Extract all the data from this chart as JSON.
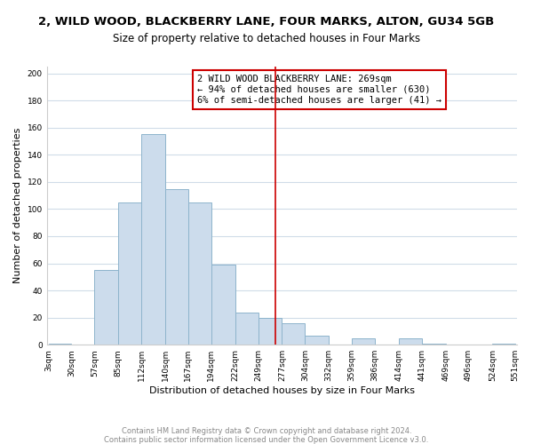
{
  "title": "2, WILD WOOD, BLACKBERRY LANE, FOUR MARKS, ALTON, GU34 5GB",
  "subtitle": "Size of property relative to detached houses in Four Marks",
  "xlabel": "Distribution of detached houses by size in Four Marks",
  "ylabel": "Number of detached properties",
  "bin_edges": [
    3,
    30,
    57,
    85,
    112,
    140,
    167,
    194,
    222,
    249,
    277,
    304,
    332,
    359,
    386,
    414,
    441,
    469,
    496,
    524,
    551
  ],
  "bin_labels": [
    "3sqm",
    "30sqm",
    "57sqm",
    "85sqm",
    "112sqm",
    "140sqm",
    "167sqm",
    "194sqm",
    "222sqm",
    "249sqm",
    "277sqm",
    "304sqm",
    "332sqm",
    "359sqm",
    "386sqm",
    "414sqm",
    "441sqm",
    "469sqm",
    "496sqm",
    "524sqm",
    "551sqm"
  ],
  "counts": [
    1,
    0,
    55,
    105,
    155,
    115,
    105,
    59,
    24,
    20,
    16,
    7,
    0,
    5,
    0,
    5,
    1,
    0,
    0,
    1
  ],
  "bar_color": "#ccdcec",
  "bar_edge_color": "#8eb4cc",
  "vline_x": 269,
  "vline_color": "#cc0000",
  "annotation_line1": "2 WILD WOOD BLACKBERRY LANE: 269sqm",
  "annotation_line2": "← 94% of detached houses are smaller (630)",
  "annotation_line3": "6% of semi-detached houses are larger (41) →",
  "annotation_box_color": "#ffffff",
  "annotation_box_edge": "#cc0000",
  "ylim": [
    0,
    205
  ],
  "yticks": [
    0,
    20,
    40,
    60,
    80,
    100,
    120,
    140,
    160,
    180,
    200
  ],
  "footer_line1": "Contains HM Land Registry data © Crown copyright and database right 2024.",
  "footer_line2": "Contains public sector information licensed under the Open Government Licence v3.0.",
  "background_color": "#ffffff",
  "grid_color": "#d0dce8",
  "title_fontsize": 9.5,
  "subtitle_fontsize": 8.5,
  "ylabel_fontsize": 8,
  "xlabel_fontsize": 8,
  "tick_fontsize": 6.5,
  "annotation_fontsize": 7.5,
  "footer_fontsize": 6,
  "footer_color": "#888888"
}
